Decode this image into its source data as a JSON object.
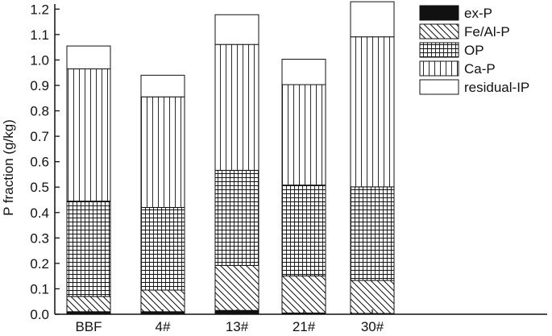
{
  "chart_data": {
    "type": "bar",
    "stacked": true,
    "categories": [
      "BBF",
      "4#",
      "13#",
      "21#",
      "30#"
    ],
    "ylabel": "P fraction (g/kg)",
    "xlabel": "",
    "title": "",
    "ylim": [
      0.0,
      1.22
    ],
    "yticks": [
      "0.0",
      "0.1",
      "0.2",
      "0.3",
      "0.4",
      "0.5",
      "0.6",
      "0.7",
      "0.8",
      "0.9",
      "1.0",
      "1.1",
      "1.2"
    ],
    "legend_position": "top-right",
    "series": [
      {
        "name": "ex-P",
        "pattern": "solid-black",
        "values": [
          0.01,
          0.01,
          0.015,
          0.005,
          0.003
        ]
      },
      {
        "name": "Fe/Al-P",
        "pattern": "diagonal-hatch",
        "values": [
          0.06,
          0.085,
          0.177,
          0.146,
          0.13
        ]
      },
      {
        "name": "OP",
        "pattern": "crosshatch-grid",
        "values": [
          0.375,
          0.325,
          0.374,
          0.357,
          0.368
        ]
      },
      {
        "name": "Ca-P",
        "pattern": "vertical-lines",
        "values": [
          0.52,
          0.435,
          0.495,
          0.395,
          0.59
        ]
      },
      {
        "name": "residual-IP",
        "pattern": "blank",
        "values": [
          0.09,
          0.085,
          0.117,
          0.1,
          0.138
        ]
      }
    ]
  }
}
